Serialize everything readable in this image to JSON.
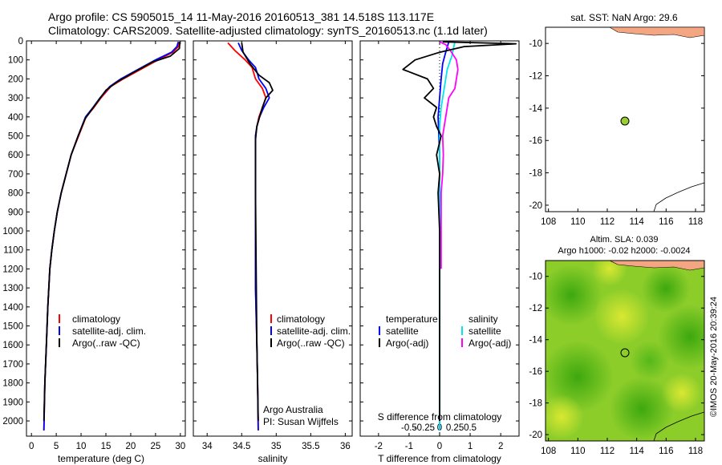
{
  "header": {
    "line1": "Argo profile: CS 5905015_14 11-May-2016 20160513_381 14.518S 113.117E",
    "line2": "Climatology: CARS2009. Satellite-adjusted climatology: synTS_20160513.nc (1.1d later)"
  },
  "colors": {
    "climatology": "#ff0000",
    "satellite": "#0000ff",
    "argo": "#000000",
    "sal_satellite": "#00e5ee",
    "sal_argo": "#ff00ff",
    "land": "#f4a582",
    "map_point": "#9acd32"
  },
  "chart_data": [
    {
      "id": "temperature",
      "type": "line",
      "xlabel": "temperature (deg C)",
      "xlim": [
        -1,
        31
      ],
      "ylim": [
        2080,
        0
      ],
      "xticks": [
        "0",
        "5",
        "10",
        "15",
        "20",
        "25",
        "30"
      ],
      "yticks": [
        "0",
        "100",
        "200",
        "300",
        "400",
        "500",
        "600",
        "700",
        "800",
        "900",
        "1000",
        "1100",
        "1200",
        "1300",
        "1400",
        "1500",
        "1600",
        "1700",
        "1800",
        "1900",
        "2000"
      ],
      "legend": [
        "climatology",
        "satellite-adj. clim.",
        "Argo(..raw -QC)"
      ],
      "series": [
        {
          "name": "climatology",
          "color": "#ff0000",
          "x": [
            29.8,
            29.6,
            28.5,
            25.5,
            22,
            18.5,
            16,
            14,
            12.6,
            11,
            9.5,
            8,
            7,
            6,
            5.2,
            4.6,
            4.1,
            3.7,
            3.3,
            3,
            2.7,
            2.5
          ],
          "y": [
            5,
            30,
            60,
            100,
            150,
            200,
            240,
            300,
            350,
            400,
            500,
            600,
            700,
            800,
            900,
            1000,
            1100,
            1200,
            1400,
            1600,
            1800,
            2050
          ]
        },
        {
          "name": "satellite-adj. clim.",
          "color": "#0000ff",
          "x": [
            29.6,
            29.3,
            28.2,
            25,
            21.5,
            18,
            15.8,
            13.8,
            12.4,
            10.9,
            9.4,
            8,
            7,
            6,
            5.2,
            4.6,
            4.1,
            3.7,
            3.3,
            3,
            2.7,
            2.5
          ],
          "y": [
            5,
            30,
            60,
            100,
            150,
            200,
            240,
            300,
            350,
            400,
            500,
            600,
            700,
            800,
            900,
            1000,
            1100,
            1200,
            1400,
            1600,
            1800,
            2050
          ]
        },
        {
          "name": "Argo(..raw -QC)",
          "color": "#000000",
          "x": [
            29.9,
            29.8,
            28,
            24.5,
            21,
            17,
            15,
            13.6,
            12.2,
            10.8,
            9.4,
            8,
            7,
            6,
            5.2,
            4.6,
            4.1,
            3.7,
            3.3,
            3,
            2.7,
            2.5
          ],
          "y": [
            5,
            40,
            80,
            110,
            160,
            220,
            260,
            310,
            360,
            410,
            500,
            600,
            700,
            800,
            900,
            1000,
            1100,
            1200,
            1400,
            1600,
            1800,
            2000
          ]
        }
      ]
    },
    {
      "id": "salinity",
      "type": "line",
      "xlabel": "salinity",
      "xlim": [
        33.8,
        36.1
      ],
      "ylim": [
        2080,
        0
      ],
      "xticks": [
        "34",
        "34.5",
        "35",
        "35.5",
        "36"
      ],
      "legend": [
        "climatology",
        "satellite-adj. clim.",
        "Argo(..raw -QC)"
      ],
      "series": [
        {
          "name": "climatology",
          "color": "#ff0000",
          "x": [
            34.3,
            34.4,
            34.55,
            34.65,
            34.7,
            34.8,
            34.85,
            34.8,
            34.75,
            34.72,
            34.7,
            34.7,
            34.7,
            34.7,
            34.72,
            34.73,
            34.74
          ],
          "y": [
            10,
            50,
            100,
            140,
            200,
            250,
            300,
            350,
            400,
            450,
            500,
            700,
            1000,
            1300,
            1600,
            1800,
            2050
          ]
        },
        {
          "name": "satellite-adj. clim.",
          "color": "#0000ff",
          "x": [
            34.45,
            34.5,
            34.6,
            34.7,
            34.75,
            34.85,
            34.9,
            34.82,
            34.76,
            34.72,
            34.7,
            34.7,
            34.7,
            34.7,
            34.72,
            34.73,
            34.74
          ],
          "y": [
            10,
            50,
            100,
            140,
            200,
            250,
            300,
            350,
            400,
            450,
            500,
            700,
            1000,
            1300,
            1600,
            1800,
            2050
          ]
        },
        {
          "name": "Argo(..raw -QC)",
          "color": "#000000",
          "x": [
            34.5,
            34.52,
            34.62,
            34.75,
            34.9,
            34.95,
            34.85,
            34.8,
            34.76,
            34.72,
            34.7,
            34.7,
            34.71,
            34.72,
            34.73,
            34.74
          ],
          "y": [
            10,
            60,
            120,
            180,
            220,
            260,
            300,
            350,
            400,
            450,
            520,
            800,
            1200,
            1600,
            1800,
            2000
          ]
        }
      ]
    },
    {
      "id": "difference",
      "type": "line",
      "xlabel": "T difference from climatology",
      "xlabel_top": "S difference from climatology",
      "xlim": [
        -2.6,
        2.6
      ],
      "ylim": [
        2080,
        0
      ],
      "xticks": [
        "-2",
        "-1",
        "0",
        "1",
        "2"
      ],
      "xticks_top": [
        "-0.5",
        "-0.25",
        "0",
        "0.25",
        "0.5"
      ],
      "legend_title_t": "temperature",
      "legend_title_s": "salinity",
      "legend": [
        "satellite",
        "Argo(-adj)",
        "satellite",
        "Argo(-adj)"
      ],
      "series": [
        {
          "name": "satellite",
          "color": "#0000ff",
          "x": [
            0.3,
            0.2,
            0.1,
            0.05,
            0.0,
            -0.05,
            0.0,
            0.0,
            0.0,
            0.0,
            0.0
          ],
          "y": [
            5,
            60,
            120,
            200,
            300,
            400,
            600,
            900,
            1300,
            1700,
            2050
          ]
        },
        {
          "name": "satellite",
          "color": "#00e5ee",
          "x": [
            0.5,
            0.4,
            0.25,
            0.15,
            0.05,
            0.0,
            0.0,
            0.0,
            0.0,
            0.0
          ],
          "y": [
            5,
            80,
            150,
            250,
            350,
            450,
            700,
            1100,
            1600,
            2050
          ]
        },
        {
          "name": "Argo(-adj)",
          "color": "#ff00ff",
          "x": [
            0.0,
            0.2,
            0.35,
            0.55,
            0.6,
            0.55,
            0.5,
            0.3,
            0.2,
            0.1,
            0.12,
            0.1,
            0.05,
            0.05,
            0.05
          ],
          "y": [
            5,
            20,
            50,
            100,
            150,
            200,
            250,
            300,
            400,
            500,
            600,
            700,
            800,
            1000,
            1200
          ]
        },
        {
          "name": "Argo(-adj)",
          "color": "#000000",
          "x": [
            0.1,
            2.5,
            0.8,
            0.0,
            -0.8,
            -1.2,
            -0.4,
            -0.2,
            -0.5,
            -0.1,
            -0.2,
            -0.1,
            0.05,
            -0.1,
            0.0,
            -0.05,
            0.0,
            0.0,
            0.0
          ],
          "y": [
            5,
            15,
            30,
            60,
            100,
            150,
            200,
            250,
            300,
            350,
            400,
            450,
            500,
            600,
            700,
            800,
            1000,
            1500,
            2000
          ]
        }
      ]
    }
  ],
  "maps": {
    "sst": {
      "title": "sat. SST: NaN Argo: 29.6",
      "xticks": [
        "108",
        "110",
        "112",
        "114",
        "116",
        "118"
      ],
      "yticks": [
        "-10",
        "-12",
        "-14",
        "-16",
        "-18",
        "-20"
      ],
      "point": {
        "lon": 113.1,
        "lat": -14.5
      }
    },
    "sla": {
      "title1": "Altim. SLA: 0.039",
      "title2": "Argo h1000: -0.02 h2000: -0.0024",
      "xticks": [
        "108",
        "110",
        "112",
        "114",
        "116",
        "118"
      ],
      "yticks": [
        "-10",
        "-12",
        "-14",
        "-16",
        "-18",
        "-20"
      ],
      "point": {
        "lon": 113.1,
        "lat": -14.5
      }
    }
  },
  "side_caption": "©IMOS 20-May-2016 20:39:24",
  "credit": {
    "line1": "Argo Australia",
    "line2": "PI: Susan Wijffels"
  }
}
